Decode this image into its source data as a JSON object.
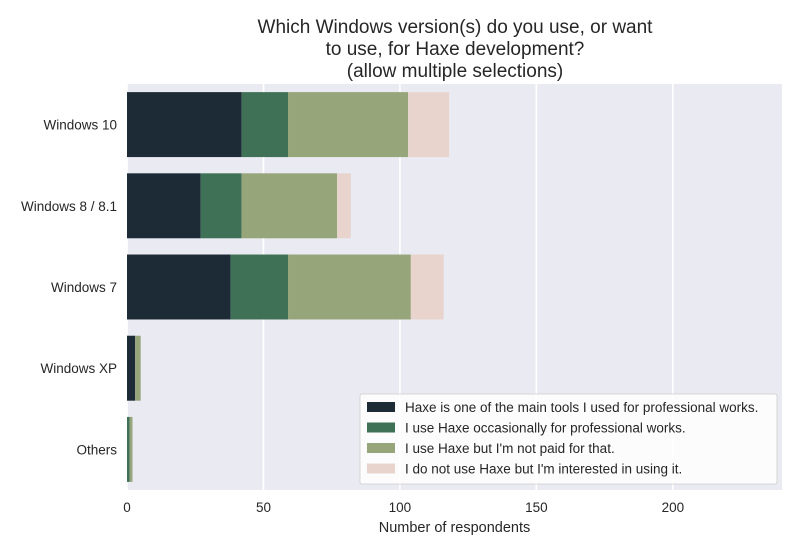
{
  "chart_data": {
    "type": "bar",
    "orientation": "horizontal",
    "stacked": true,
    "title": "Which Windows version(s) do you use, or want to use, for Haxe development? (allow multiple selections)",
    "title_lines": [
      "Which Windows version(s) do you use, or want",
      "to use, for Haxe development?",
      "(allow multiple selections)"
    ],
    "xlabel": "Number of respondents",
    "ylabel": "",
    "xlim": [
      0,
      240
    ],
    "xticks": [
      0,
      50,
      100,
      150,
      200
    ],
    "grid": true,
    "legend_position": "bottom-right",
    "background": "#eaeaf2",
    "categories": [
      "Windows 10",
      "Windows 8 / 8.1",
      "Windows 7",
      "Windows XP",
      "Others"
    ],
    "series": [
      {
        "name": "Haxe is one of the main tools I used for professional works.",
        "color": "#1c2b36",
        "values": [
          42,
          27,
          38,
          3,
          0
        ]
      },
      {
        "name": "I use Haxe occasionally for professional works.",
        "color": "#3f7157",
        "values": [
          17,
          15,
          21,
          0,
          1
        ]
      },
      {
        "name": "I use Haxe but I'm not paid for that.",
        "color": "#97a57a",
        "values": [
          44,
          35,
          45,
          2,
          1
        ]
      },
      {
        "name": "I do not use Haxe but I'm interested in using it.",
        "color": "#e8d4cd",
        "values": [
          15,
          5,
          12,
          0,
          0
        ]
      }
    ]
  }
}
